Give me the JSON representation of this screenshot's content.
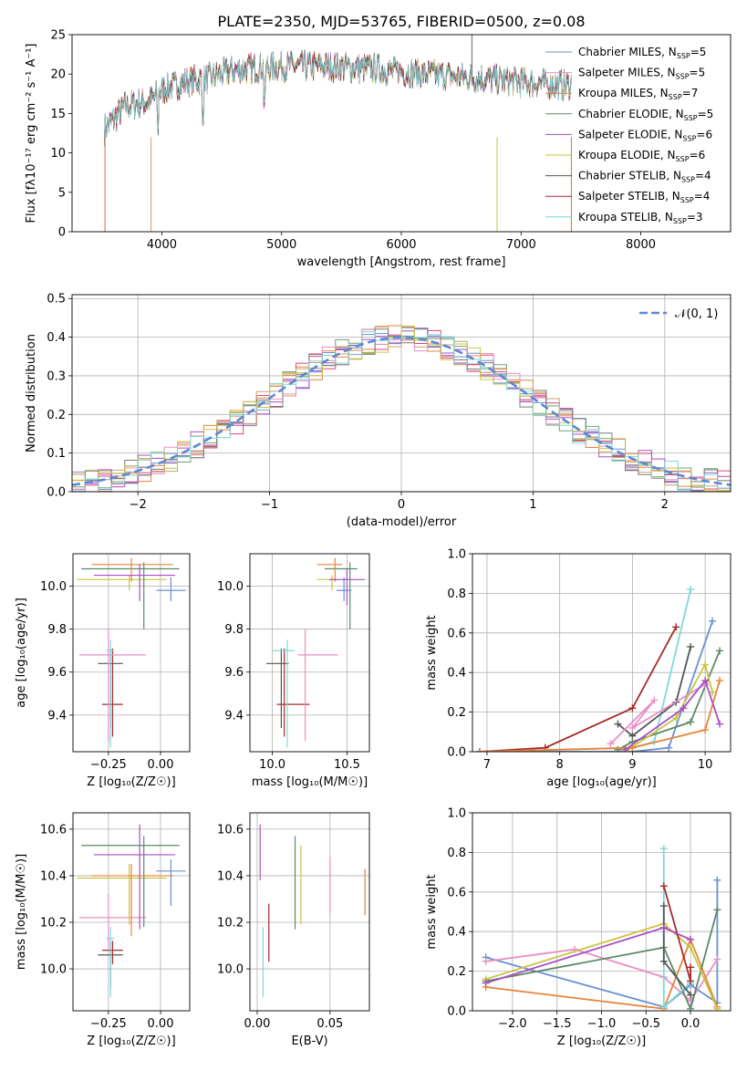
{
  "colors": [
    "#6a8fd6",
    "#e8843a",
    "#6aa573",
    "#e4407a",
    "#ab4ec3",
    "#c9a26c",
    "#ea8ec5",
    "#7b7b7b",
    "#c9c441",
    "#7ed8dc",
    "#a82a2a",
    "#555555",
    "#de6b2a",
    "#5c8a67"
  ],
  "chart_data": [
    {
      "type": "line",
      "id": "spectrum",
      "title": "PLATE=2350, MJD=53765, FIBERID=0500, z=0.08",
      "xlabel": "wavelength [Angstrom, rest frame]",
      "ylabel": "Flux [fλ10⁻¹⁷ erg cm⁻² s⁻¹ A⁻¹]",
      "xlim": [
        3250,
        8750
      ],
      "ylim": [
        0,
        25
      ],
      "xticks": [
        "4000",
        "5000",
        "6000",
        "7000",
        "8000"
      ],
      "yticks": [
        "0",
        "5",
        "10",
        "15",
        "20",
        "25"
      ],
      "legend_position": "upper-right",
      "series": [
        {
          "name": "Chabrier MILES, N",
          "sub": "SSP",
          "post": "=5",
          "color": "#6a8fd6"
        },
        {
          "name": "Salpeter MILES, N",
          "sub": "SSP",
          "post": "=5",
          "color": "#ea8ec5"
        },
        {
          "name": "Kroupa MILES, N",
          "sub": "SSP",
          "post": "=7",
          "color": "#e8843a"
        },
        {
          "name": "Chabrier ELODIE, N",
          "sub": "SSP",
          "post": "=5",
          "color": "#5c8a67"
        },
        {
          "name": "Salpeter ELODIE, N",
          "sub": "SSP",
          "post": "=6",
          "color": "#ab4ec3"
        },
        {
          "name": "Kroupa ELODIE, N",
          "sub": "SSP",
          "post": "=6",
          "color": "#c9c441"
        },
        {
          "name": "Chabrier STELIB, N",
          "sub": "SSP",
          "post": "=4",
          "color": "#555555"
        },
        {
          "name": "Salpeter STELIB, N",
          "sub": "SSP",
          "post": "=4",
          "color": "#a82a2a"
        },
        {
          "name": "Kroupa STELIB, N",
          "sub": "SSP",
          "post": "=3",
          "color": "#7ed8dc"
        }
      ],
      "continuum": {
        "x": [
          3520,
          3700,
          3900,
          4000,
          4200,
          4400,
          4600,
          4800,
          5000,
          5200,
          5400,
          5600,
          5800,
          6000,
          6200,
          6400,
          6600,
          6800,
          7000,
          7200,
          7400
        ],
        "y": [
          13,
          16,
          16.5,
          18,
          19,
          19.5,
          20.5,
          20.8,
          21,
          21,
          21,
          20.8,
          20.6,
          20.3,
          20,
          19.8,
          19.5,
          19.3,
          19,
          18.8,
          18.5
        ]
      }
    },
    {
      "type": "histogram",
      "id": "residuals",
      "xlabel": "(data-model)/error",
      "ylabel": "Normed distribution",
      "xlim": [
        -2.5,
        2.5
      ],
      "ylim": [
        0,
        0.51
      ],
      "xticks": [
        "−2",
        "−1",
        "0",
        "1",
        "2"
      ],
      "yticks": [
        "0.0",
        "0.1",
        "0.2",
        "0.3",
        "0.4",
        "0.5"
      ],
      "legend": "𝒩(0, 1)",
      "legend_color": "#5b87d4",
      "bin_width": 0.1,
      "bins_from": -2.5
    },
    {
      "type": "scatter",
      "id": "age_vs_z",
      "xlabel": "Z [log₁₀(Z/Z☉)]",
      "ylabel": "age  [log₁₀(age/yr)]",
      "xlim": [
        -0.42,
        0.14
      ],
      "ylim": [
        9.23,
        10.15
      ],
      "xticks": [
        "−0.25",
        "0.00"
      ],
      "yticks": [
        "9.4",
        "9.6",
        "9.8",
        "10.0"
      ],
      "points": [
        {
          "x": -0.24,
          "y": 9.64,
          "xerr": [
            0.06,
            0.06
          ],
          "yerr": [
            0.3,
            0.07
          ],
          "color": "#555555"
        },
        {
          "x": -0.23,
          "y": 9.45,
          "xerr": [
            0.05,
            0.05
          ],
          "yerr": [
            0.15,
            0.26
          ],
          "color": "#a82a2a"
        },
        {
          "x": -0.25,
          "y": 9.68,
          "xerr": [
            0.14,
            0.18
          ],
          "yerr": [
            0.4,
            0.12
          ],
          "color": "#ea8ec5"
        },
        {
          "x": -0.24,
          "y": 9.7,
          "xerr": [
            0.02,
            0.02
          ],
          "yerr": [
            0.45,
            0.05
          ],
          "color": "#7ed8dc"
        },
        {
          "x": -0.15,
          "y": 10.03,
          "xerr": [
            0.25,
            0.18
          ],
          "yerr": [
            0.05,
            0.02
          ],
          "color": "#c9c441"
        },
        {
          "x": -0.08,
          "y": 10.08,
          "xerr": [
            0.3,
            0.17
          ],
          "yerr": [
            0.28,
            0.03
          ],
          "color": "#5c8a67"
        },
        {
          "x": -0.14,
          "y": 10.1,
          "xerr": [
            0.19,
            0.2
          ],
          "yerr": [
            0.08,
            0.03
          ],
          "color": "#e8843a"
        },
        {
          "x": 0.05,
          "y": 9.98,
          "xerr": [
            0.07,
            0.07
          ],
          "yerr": [
            0.05,
            0.06
          ],
          "color": "#6a8fd6"
        },
        {
          "x": -0.1,
          "y": 10.05,
          "xerr": [
            0.22,
            0.17
          ],
          "yerr": [
            0.12,
            0.05
          ],
          "color": "#ab4ec3"
        }
      ]
    },
    {
      "type": "scatter",
      "id": "age_vs_mass",
      "xlabel": "mass [log₁₀(M/M☉)]",
      "xlim": [
        9.85,
        10.65
      ],
      "ylim": [
        9.23,
        10.15
      ],
      "xticks": [
        "10.0",
        "10.5"
      ],
      "yticks": [
        "9.4",
        "9.6",
        "9.8",
        "10.0"
      ],
      "points": [
        {
          "x": 10.06,
          "y": 9.64,
          "xerr": [
            0.1,
            0.05
          ],
          "yerr": [
            0.3,
            0.07
          ],
          "color": "#555555"
        },
        {
          "x": 10.08,
          "y": 9.45,
          "xerr": [
            0.05,
            0.17
          ],
          "yerr": [
            0.15,
            0.26
          ],
          "color": "#a82a2a"
        },
        {
          "x": 10.22,
          "y": 9.68,
          "xerr": [
            0.05,
            0.22
          ],
          "yerr": [
            0.4,
            0.12
          ],
          "color": "#ea8ec5"
        },
        {
          "x": 10.1,
          "y": 9.7,
          "xerr": [
            0.1,
            0.05
          ],
          "yerr": [
            0.45,
            0.05
          ],
          "color": "#7ed8dc"
        },
        {
          "x": 10.4,
          "y": 10.03,
          "xerr": [
            0.1,
            0.05
          ],
          "yerr": [
            0.05,
            0.02
          ],
          "color": "#c9c441"
        },
        {
          "x": 10.52,
          "y": 10.08,
          "xerr": [
            0.17,
            0.05
          ],
          "yerr": [
            0.28,
            0.03
          ],
          "color": "#5c8a67"
        },
        {
          "x": 10.42,
          "y": 10.1,
          "xerr": [
            0.12,
            0.05
          ],
          "yerr": [
            0.08,
            0.03
          ],
          "color": "#e8843a"
        },
        {
          "x": 10.48,
          "y": 9.98,
          "xerr": [
            0.05,
            0.05
          ],
          "yerr": [
            0.05,
            0.06
          ],
          "color": "#6a8fd6"
        },
        {
          "x": 10.5,
          "y": 10.03,
          "xerr": [
            0.12,
            0.12
          ],
          "yerr": [
            0.12,
            0.05
          ],
          "color": "#ab4ec3"
        }
      ]
    },
    {
      "type": "line",
      "id": "massweight_vs_age",
      "xlabel": "age  [log₁₀(age/yr)]",
      "ylabel": "mass weight",
      "xlim": [
        6.8,
        10.35
      ],
      "ylim": [
        0,
        1
      ],
      "xticks": [
        "7",
        "8",
        "9",
        "10"
      ],
      "yticks": [
        "0.0",
        "0.2",
        "0.4",
        "0.6",
        "0.8",
        "1.0"
      ],
      "series": [
        {
          "color": "#a82a2a",
          "x": [
            6.9,
            7.8,
            9.0,
            9.6
          ],
          "y": [
            0.0,
            0.02,
            0.22,
            0.63
          ]
        },
        {
          "color": "#7ed8dc",
          "x": [
            6.9,
            9.0,
            9.3,
            9.8
          ],
          "y": [
            0.0,
            0.02,
            0.05,
            0.82
          ]
        },
        {
          "color": "#6a8fd6",
          "x": [
            6.9,
            9.0,
            9.5,
            10.1
          ],
          "y": [
            0.0,
            0.0,
            0.02,
            0.66
          ]
        },
        {
          "color": "#555555",
          "x": [
            8.8,
            9.0,
            9.6,
            9.8
          ],
          "y": [
            0.14,
            0.08,
            0.25,
            0.53
          ]
        },
        {
          "color": "#5c8a67",
          "x": [
            8.8,
            9.0,
            9.8,
            10.2
          ],
          "y": [
            0.01,
            0.05,
            0.15,
            0.51
          ]
        },
        {
          "color": "#ea8ec5",
          "x": [
            8.7,
            9.3,
            9.0,
            10.0
          ],
          "y": [
            0.04,
            0.26,
            0.12,
            0.34
          ]
        },
        {
          "color": "#c9c441",
          "x": [
            8.9,
            9.6,
            10.0,
            10.1
          ],
          "y": [
            0.0,
            0.17,
            0.44,
            0.3
          ]
        },
        {
          "color": "#e8843a",
          "x": [
            6.9,
            9.0,
            10.0,
            10.2
          ],
          "y": [
            0.0,
            0.02,
            0.11,
            0.36
          ]
        },
        {
          "color": "#ab4ec3",
          "x": [
            8.9,
            9.7,
            10.0,
            10.2
          ],
          "y": [
            0.01,
            0.22,
            0.36,
            0.14
          ]
        }
      ]
    },
    {
      "type": "scatter",
      "id": "mass_vs_z",
      "xlabel": "Z [log₁₀(Z/Z☉)]",
      "ylabel": "mass [log₁₀(M/M☉)]",
      "xlim": [
        -0.42,
        0.14
      ],
      "ylim": [
        9.82,
        10.67
      ],
      "xticks": [
        "−0.25",
        "0.00"
      ],
      "yticks": [
        "10.0",
        "10.2",
        "10.4",
        "10.6"
      ],
      "points": [
        {
          "x": -0.24,
          "y": 10.06,
          "xerr": [
            0.06,
            0.06
          ],
          "yerr": [
            0.14,
            0.06
          ],
          "color": "#555555"
        },
        {
          "x": -0.23,
          "y": 10.08,
          "xerr": [
            0.05,
            0.05
          ],
          "yerr": [
            0.06,
            0.04
          ],
          "color": "#a82a2a"
        },
        {
          "x": -0.25,
          "y": 10.22,
          "xerr": [
            0.14,
            0.18
          ],
          "yerr": [
            0.13,
            0.1
          ],
          "color": "#ea8ec5"
        },
        {
          "x": -0.24,
          "y": 10.13,
          "xerr": [
            0.02,
            0.02
          ],
          "yerr": [
            0.25,
            0.05
          ],
          "color": "#7ed8dc"
        },
        {
          "x": -0.15,
          "y": 10.39,
          "xerr": [
            0.25,
            0.18
          ],
          "yerr": [
            0.2,
            0.06
          ],
          "color": "#c9c441"
        },
        {
          "x": -0.08,
          "y": 10.53,
          "xerr": [
            0.3,
            0.17
          ],
          "yerr": [
            0.35,
            0.04
          ],
          "color": "#5c8a67"
        },
        {
          "x": -0.14,
          "y": 10.4,
          "xerr": [
            0.19,
            0.2
          ],
          "yerr": [
            0.26,
            0.05
          ],
          "color": "#e8843a"
        },
        {
          "x": 0.05,
          "y": 10.42,
          "xerr": [
            0.07,
            0.07
          ],
          "yerr": [
            0.15,
            0.05
          ],
          "color": "#6a8fd6"
        },
        {
          "x": -0.1,
          "y": 10.49,
          "xerr": [
            0.22,
            0.17
          ],
          "yerr": [
            0.32,
            0.13
          ],
          "color": "#ab4ec3"
        }
      ]
    },
    {
      "type": "scatter",
      "id": "mass_vs_ebv",
      "xlabel": "E(B-V)",
      "xlim": [
        -0.005,
        0.077
      ],
      "ylim": [
        9.82,
        10.67
      ],
      "xticks": [
        "0.00",
        "0.05"
      ],
      "yticks": [
        "10.0",
        "10.2",
        "10.4",
        "10.6"
      ],
      "points": [
        {
          "x": 0.002,
          "y": 10.5,
          "yerr": [
            0.12,
            0.12
          ],
          "color": "#ab4ec3"
        },
        {
          "x": 0.004,
          "y": 10.03,
          "yerr": [
            0.15,
            0.15
          ],
          "color": "#7ed8dc"
        },
        {
          "x": 0.008,
          "y": 10.16,
          "yerr": [
            0.13,
            0.12
          ],
          "color": "#a82a2a"
        },
        {
          "x": 0.026,
          "y": 10.37,
          "yerr": [
            0.2,
            0.2
          ],
          "color": "#5c8a67"
        },
        {
          "x": 0.03,
          "y": 10.36,
          "yerr": [
            0.17,
            0.17
          ],
          "color": "#c9c441"
        },
        {
          "x": 0.05,
          "y": 10.38,
          "yerr": [
            0.14,
            0.1
          ],
          "color": "#ea8ec5"
        },
        {
          "x": 0.074,
          "y": 10.33,
          "yerr": [
            0.1,
            0.1
          ],
          "color": "#e8843a"
        }
      ]
    },
    {
      "type": "line",
      "id": "massweight_vs_z",
      "xlabel": "Z [log₁₀(Z/Z☉)]",
      "ylabel": "mass weight",
      "xlim": [
        -2.45,
        0.45
      ],
      "ylim": [
        0,
        1
      ],
      "xticks": [
        "−2.0",
        "−1.5",
        "−1.0",
        "−0.5",
        "0.0"
      ],
      "yticks": [
        "0.0",
        "0.2",
        "0.4",
        "0.6",
        "0.8",
        "1.0"
      ],
      "series": [
        {
          "color": "#6a8fd6",
          "x": [
            -2.3,
            -0.3,
            0.0,
            0.3,
            0.3
          ],
          "y": [
            0.27,
            0.02,
            0.13,
            0.04,
            0.66
          ]
        },
        {
          "color": "#ea8ec5",
          "x": [
            -2.3,
            -1.3,
            -0.3,
            0.0,
            0.3
          ],
          "y": [
            0.25,
            0.31,
            0.17,
            0.05,
            0.26
          ]
        },
        {
          "color": "#e8843a",
          "x": [
            -2.3,
            -0.3,
            0.0,
            0.3
          ],
          "y": [
            0.12,
            0.01,
            0.36,
            0.02
          ]
        },
        {
          "color": "#5c8a67",
          "x": [
            -2.3,
            -0.3,
            0.0,
            0.3
          ],
          "y": [
            0.15,
            0.32,
            0.01,
            0.51
          ]
        },
        {
          "color": "#c9c441",
          "x": [
            -2.3,
            -0.3,
            0.0,
            0.3
          ],
          "y": [
            0.16,
            0.44,
            0.32,
            0.01
          ]
        },
        {
          "color": "#7ed8dc",
          "x": [
            -0.3,
            -0.3,
            0.0
          ],
          "y": [
            0.82,
            0.02,
            0.14
          ]
        },
        {
          "color": "#a82a2a",
          "x": [
            -0.3,
            0.0,
            0.0
          ],
          "y": [
            0.63,
            0.15,
            0.22
          ]
        },
        {
          "color": "#555555",
          "x": [
            -0.3,
            -0.3,
            0.0
          ],
          "y": [
            0.53,
            0.25,
            0.08
          ]
        },
        {
          "color": "#ab4ec3",
          "x": [
            -2.3,
            -0.3,
            0.0
          ],
          "y": [
            0.14,
            0.42,
            0.36
          ]
        }
      ]
    }
  ]
}
